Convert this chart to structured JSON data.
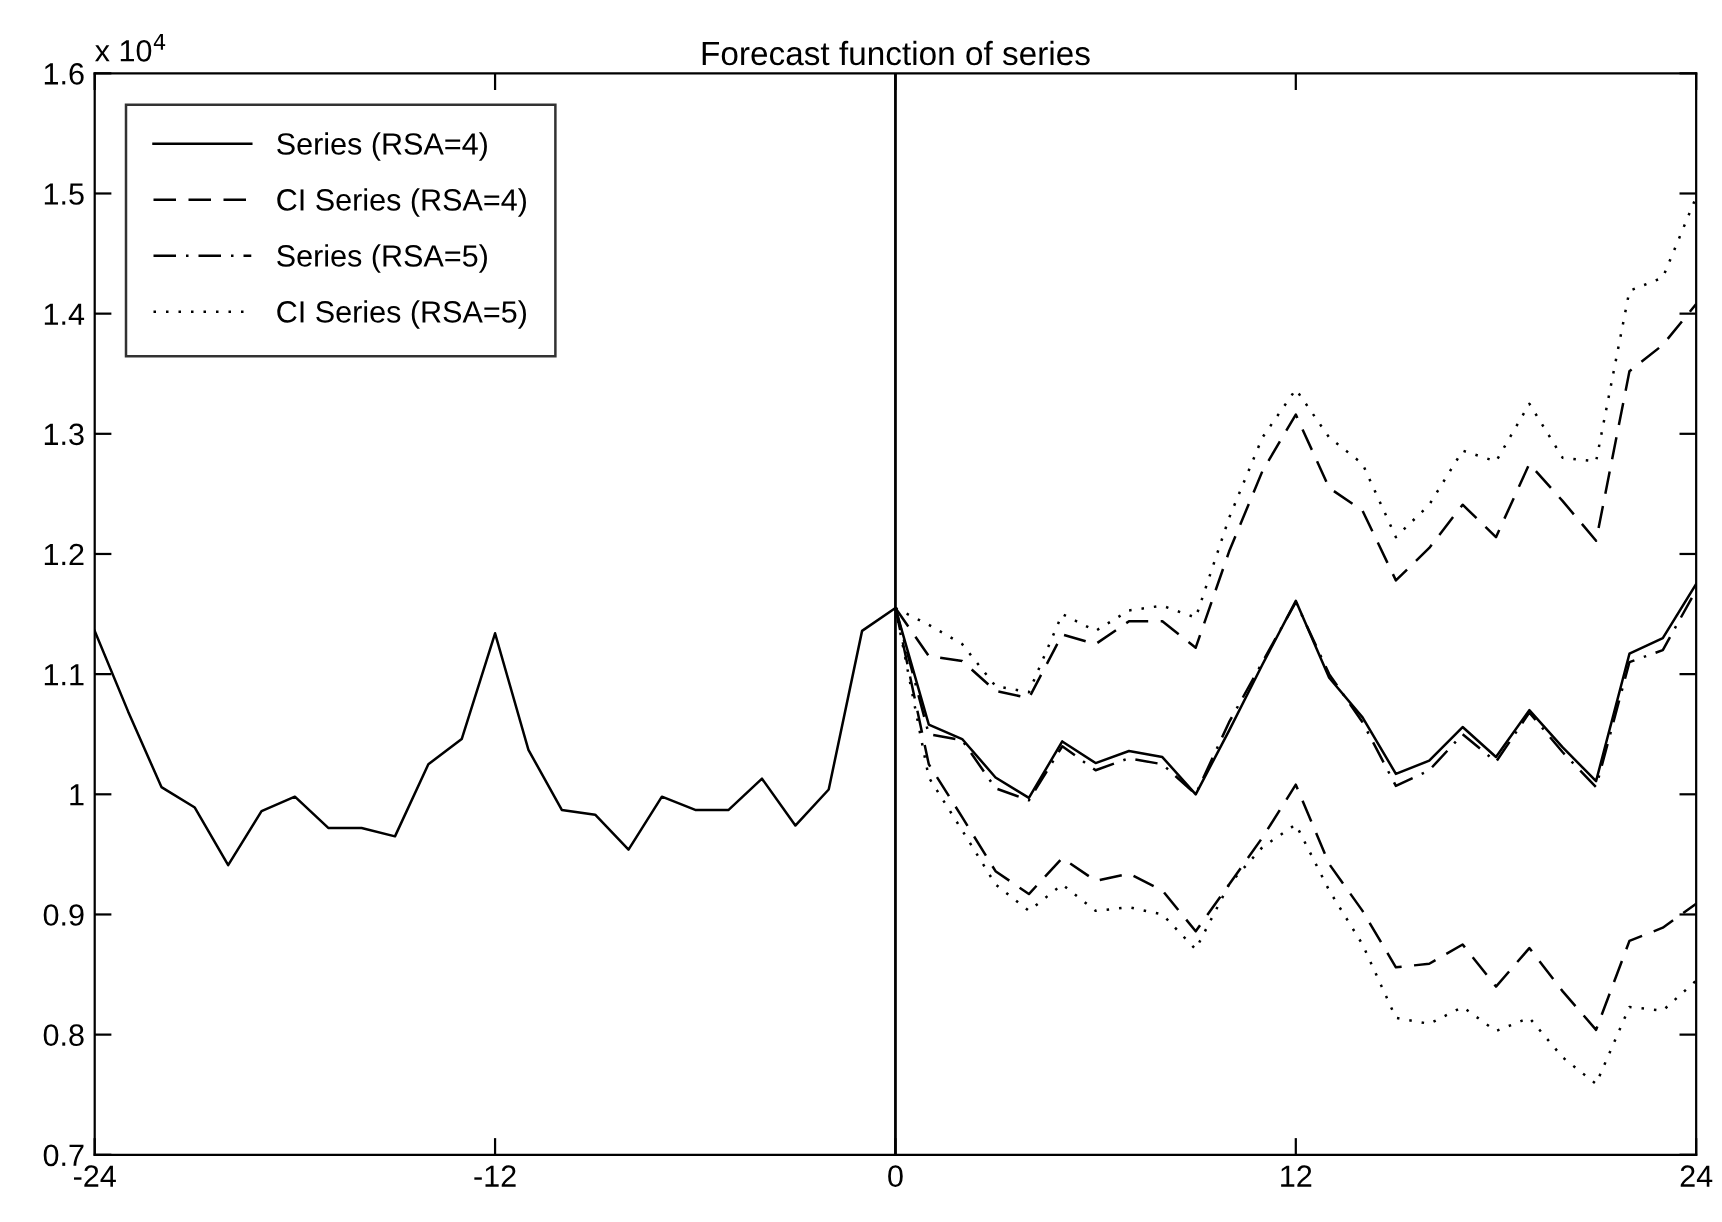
{
  "chart_data": {
    "type": "line",
    "title": "Forecast function of series",
    "annotations": [
      "x 10$^{4}$"
    ],
    "xlim": [
      -24,
      24
    ],
    "xticks": [
      -24,
      -12,
      0,
      12,
      24
    ],
    "ylim": [
      0.7,
      1.6
    ],
    "yticks": [
      0.7,
      0.8,
      0.9,
      1,
      1.1,
      1.2,
      1.3,
      1.4,
      1.5,
      1.6
    ],
    "grid": false,
    "legend": "top left",
    "ref_lines": [
      {
        "axis": "x",
        "value": 0,
        "color": "#000000"
      }
    ],
    "series": [
      {
        "name": "Series (RSA=4)",
        "color": "#000000",
        "line_style": "solid",
        "x": [
          -24,
          -23,
          -22,
          -21,
          -20,
          -19,
          -18,
          -17,
          -16,
          -15,
          -14,
          -13,
          -12,
          -11,
          -10,
          -9,
          -8,
          -7,
          -6,
          -5,
          -4,
          -3,
          -2,
          -1,
          0,
          1,
          2,
          3,
          4,
          5,
          6,
          7,
          8,
          9,
          10,
          11,
          12,
          13,
          14,
          15,
          16,
          17,
          18,
          19,
          20,
          21,
          22,
          23,
          24
        ],
        "values": [
          1.136,
          1.069,
          1.006,
          0.989,
          0.941,
          0.986,
          0.998,
          0.972,
          0.972,
          0.965,
          1.025,
          1.046,
          1.134,
          1.037,
          0.987,
          0.983,
          0.954,
          0.998,
          0.987,
          0.987,
          1.013,
          0.974,
          1.004,
          1.136,
          1.155,
          1.058,
          1.046,
          1.014,
          0.997,
          1.044,
          1.026,
          1.036,
          1.031,
          1.0,
          1.053,
          1.108,
          1.161,
          1.097,
          1.064,
          1.017,
          1.028,
          1.056,
          1.031,
          1.07,
          1.039,
          1.011,
          1.117,
          1.13,
          1.175
        ]
      },
      {
        "name": "CI Series (RSA=4)",
        "color": "#000000",
        "line_style": "dashed",
        "x": [
          0,
          1,
          2,
          3,
          4,
          5,
          6,
          7,
          8,
          9,
          10,
          11,
          12,
          13,
          14,
          15,
          16,
          17,
          18,
          19,
          20,
          21,
          22,
          23,
          24
        ],
        "values": [
          1.155,
          1.115,
          1.111,
          1.086,
          1.08,
          1.133,
          1.125,
          1.144,
          1.144,
          1.122,
          1.202,
          1.269,
          1.316,
          1.255,
          1.236,
          1.178,
          1.205,
          1.241,
          1.214,
          1.275,
          1.244,
          1.211,
          1.352,
          1.374,
          1.408
        ]
      },
      {
        "color": "#000000",
        "line_style": "dashed",
        "x": [
          0,
          1,
          2,
          3,
          4,
          5,
          6,
          7,
          8,
          9,
          10,
          11,
          12,
          13,
          14,
          15,
          16,
          17,
          18,
          19,
          20,
          21,
          22,
          23,
          24
        ],
        "values": [
          1.155,
          1.025,
          0.981,
          0.936,
          0.917,
          0.947,
          0.928,
          0.934,
          0.92,
          0.886,
          0.925,
          0.964,
          1.008,
          0.942,
          0.903,
          0.856,
          0.859,
          0.875,
          0.84,
          0.872,
          0.836,
          0.804,
          0.878,
          0.889,
          0.909
        ]
      },
      {
        "name": "Series (RSA=5)",
        "color": "#000000",
        "line_style": "dashdot",
        "x": [
          0,
          1,
          2,
          3,
          4,
          5,
          6,
          7,
          8,
          9,
          10,
          11,
          12,
          13,
          14,
          15,
          16,
          17,
          18,
          19,
          20,
          21,
          22,
          23,
          24
        ],
        "values": [
          1.155,
          1.05,
          1.045,
          1.005,
          0.995,
          1.04,
          1.02,
          1.03,
          1.025,
          1.0,
          1.06,
          1.11,
          1.16,
          1.1,
          1.06,
          1.007,
          1.02,
          1.05,
          1.027,
          1.068,
          1.035,
          1.006,
          1.11,
          1.12,
          1.17
        ]
      },
      {
        "name": "CI Series (RSA=5)",
        "color": "#000000",
        "line_style": "dotted",
        "x": [
          0,
          1,
          2,
          3,
          4,
          5,
          6,
          7,
          8,
          9,
          10,
          11,
          12,
          13,
          14,
          15,
          16,
          17,
          18,
          19,
          20,
          21,
          22,
          23,
          24
        ],
        "values": [
          1.155,
          1.141,
          1.125,
          1.09,
          1.085,
          1.15,
          1.136,
          1.153,
          1.157,
          1.147,
          1.23,
          1.297,
          1.337,
          1.297,
          1.275,
          1.214,
          1.241,
          1.286,
          1.277,
          1.325,
          1.28,
          1.277,
          1.419,
          1.43,
          1.497
        ]
      },
      {
        "color": "#000000",
        "line_style": "dotted",
        "x": [
          0,
          1,
          2,
          3,
          4,
          5,
          6,
          7,
          8,
          9,
          10,
          11,
          12,
          13,
          14,
          15,
          16,
          17,
          18,
          19,
          20,
          21,
          22,
          23,
          24
        ],
        "values": [
          1.155,
          1.014,
          0.97,
          0.925,
          0.903,
          0.925,
          0.903,
          0.906,
          0.9,
          0.871,
          0.925,
          0.956,
          0.975,
          0.92,
          0.875,
          0.814,
          0.809,
          0.823,
          0.803,
          0.814,
          0.781,
          0.759,
          0.823,
          0.82,
          0.845
        ]
      }
    ]
  }
}
